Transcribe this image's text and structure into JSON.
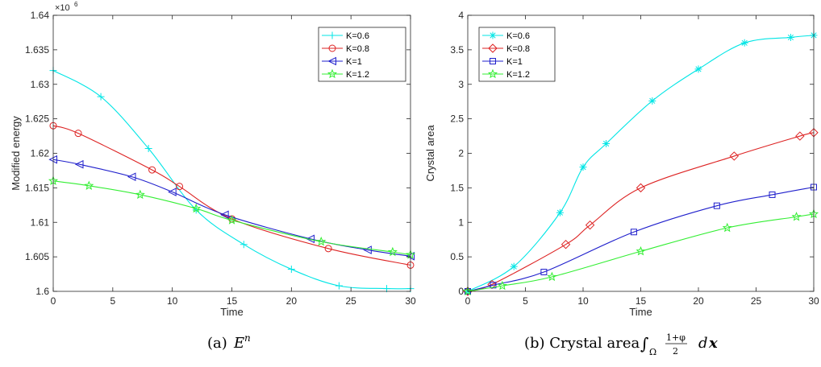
{
  "captions": {
    "a_label": "(a)",
    "a_math": "E",
    "a_sup": "n",
    "b_label": "(b) Crystal area",
    "b_int_sub": "Ω",
    "b_frac_num": "1+φ",
    "b_frac_den": "2",
    "b_dx": "d",
    "b_x": "x"
  },
  "chart_data": [
    {
      "type": "line",
      "title": "",
      "xlabel": "Time",
      "ylabel": "Modified energy",
      "y_exponent_label": "×10",
      "y_exponent_power": "6",
      "xlim": [
        0,
        30
      ],
      "ylim": [
        1.6,
        1.64
      ],
      "xticks": [
        0,
        5,
        10,
        15,
        20,
        25,
        30
      ],
      "xtick_labels": [
        "0",
        "5",
        "10",
        "15",
        "20",
        "25",
        "30"
      ],
      "yticks": [
        1.6,
        1.605,
        1.61,
        1.615,
        1.62,
        1.625,
        1.63,
        1.635,
        1.64
      ],
      "ytick_labels": [
        "1.6",
        "1.605",
        "1.61",
        "1.615",
        "1.62",
        "1.625",
        "1.63",
        "1.635",
        "1.64"
      ],
      "grid": false,
      "legend_position": "top-right",
      "series": [
        {
          "name": "K=0.6",
          "color": "#00e5e5",
          "marker": "plus",
          "x": [
            0,
            4,
            8,
            12,
            16,
            20,
            24,
            28,
            30
          ],
          "y": [
            1.632,
            1.6282,
            1.6207,
            1.6118,
            1.6068,
            1.6032,
            1.6008,
            1.6004,
            1.6004
          ]
        },
        {
          "name": "K=0.8",
          "color": "#dd2222",
          "marker": "circle",
          "x": [
            0,
            2.1,
            8.3,
            10.6,
            15,
            23.1,
            30
          ],
          "y": [
            1.624,
            1.6229,
            1.6176,
            1.6152,
            1.6105,
            1.6062,
            1.6038
          ]
        },
        {
          "name": "K=1",
          "color": "#1f1fcc",
          "marker": "triangle-left",
          "x": [
            0,
            2.2,
            6.6,
            10,
            14.4,
            21.6,
            26.4,
            30
          ],
          "y": [
            1.6191,
            1.6184,
            1.6166,
            1.6144,
            1.6111,
            1.6076,
            1.606,
            1.6051
          ]
        },
        {
          "name": "K=1.2",
          "color": "#33ee33",
          "marker": "star",
          "x": [
            0,
            3,
            7.3,
            12,
            15,
            22.5,
            28.5,
            30
          ],
          "y": [
            1.616,
            1.6153,
            1.614,
            1.612,
            1.6103,
            1.6072,
            1.6057,
            1.6053
          ]
        }
      ]
    },
    {
      "type": "line",
      "title": "",
      "xlabel": "Time",
      "ylabel": "Crystal area",
      "xlim": [
        0,
        30
      ],
      "ylim": [
        0,
        4
      ],
      "xticks": [
        0,
        5,
        10,
        15,
        20,
        25,
        30
      ],
      "xtick_labels": [
        "0",
        "5",
        "10",
        "15",
        "20",
        "25",
        "30"
      ],
      "yticks": [
        0,
        0.5,
        1,
        1.5,
        2,
        2.5,
        3,
        3.5,
        4
      ],
      "ytick_labels": [
        "0",
        "0.5",
        "1",
        "1.5",
        "2",
        "2.5",
        "3",
        "3.5",
        "4"
      ],
      "grid": false,
      "legend_position": "top-left",
      "series": [
        {
          "name": "K=0.6",
          "color": "#00e5e5",
          "marker": "asterisk",
          "x": [
            0,
            4,
            8,
            10,
            12,
            16,
            20,
            24,
            28,
            30
          ],
          "y": [
            0,
            0.36,
            1.14,
            1.8,
            2.14,
            2.76,
            3.22,
            3.6,
            3.68,
            3.71
          ]
        },
        {
          "name": "K=0.8",
          "color": "#dd2222",
          "marker": "diamond",
          "x": [
            0,
            2.1,
            8.5,
            10.6,
            15,
            23.1,
            28.8,
            30
          ],
          "y": [
            0,
            0.1,
            0.68,
            0.96,
            1.5,
            1.96,
            2.25,
            2.3
          ]
        },
        {
          "name": "K=1",
          "color": "#1f1fcc",
          "marker": "square",
          "x": [
            0,
            2.2,
            6.6,
            14.4,
            21.6,
            26.4,
            30
          ],
          "y": [
            0,
            0.09,
            0.28,
            0.86,
            1.24,
            1.4,
            1.51
          ]
        },
        {
          "name": "K=1.2",
          "color": "#33ee33",
          "marker": "star",
          "x": [
            0,
            3,
            7.3,
            15,
            22.5,
            28.5,
            30
          ],
          "y": [
            0,
            0.08,
            0.21,
            0.58,
            0.92,
            1.08,
            1.12
          ]
        }
      ]
    }
  ]
}
